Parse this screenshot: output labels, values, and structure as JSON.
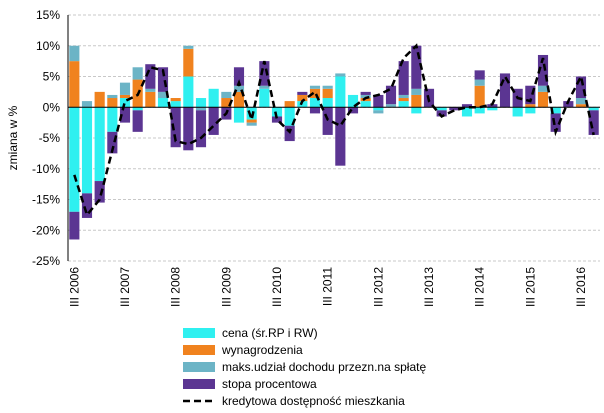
{
  "chart_data": {
    "type": "bar",
    "stacked": true,
    "y_label": "zmiana w %",
    "categories": [
      "III 2006",
      null,
      null,
      null,
      "III 2007",
      null,
      null,
      null,
      "III 2008",
      null,
      null,
      null,
      "III 2009",
      null,
      null,
      null,
      "III 2010",
      null,
      null,
      null,
      "III 2011",
      null,
      null,
      null,
      "III 2012",
      null,
      null,
      null,
      "III 2013",
      null,
      null,
      null,
      "III 2014",
      null,
      null,
      null,
      "III 2015",
      null,
      null,
      null,
      "III 2016",
      null
    ],
    "series": [
      {
        "name": "cena (śr.RP i RW)",
        "type": "bar",
        "color": "#2ff0f0",
        "values": [
          -17,
          -14,
          -12,
          -4,
          1.5,
          -0.5,
          0,
          1.5,
          1,
          5,
          1.5,
          3,
          0,
          -2.5,
          -2,
          3,
          -1.5,
          -3,
          1,
          1.5,
          1.5,
          5,
          2,
          1,
          -0.5,
          0,
          1,
          -1,
          0,
          -0.5,
          0,
          -1.5,
          -1,
          -0.5,
          0,
          -1.5,
          -1,
          0,
          -1,
          0,
          0,
          -0.5
        ]
      },
      {
        "name": "wynagrodzenia",
        "type": "bar",
        "color": "#f0821e",
        "values": [
          7.5,
          0,
          2.5,
          1.5,
          0.5,
          4.5,
          2.5,
          0,
          0.5,
          4.5,
          0,
          0,
          1.5,
          2.5,
          -0.5,
          0,
          0,
          1,
          1,
          1.5,
          1.5,
          0,
          0,
          0.5,
          0,
          0,
          0.5,
          2,
          0,
          0,
          0,
          0,
          3.5,
          0,
          0,
          0,
          0.5,
          2.5,
          0,
          0,
          0.5,
          0
        ]
      },
      {
        "name": "maks.udział dochodu przezn.na spłatę",
        "type": "bar",
        "color": "#6cb4c6",
        "values": [
          2.5,
          1,
          0,
          0.5,
          2,
          2,
          0.5,
          1,
          0,
          0.5,
          -0.5,
          0,
          1,
          1,
          -0.5,
          0.5,
          0,
          0,
          0,
          0.5,
          0.5,
          0.5,
          0,
          0.5,
          -0.5,
          0.5,
          0.5,
          1,
          0,
          0,
          0,
          0,
          1,
          0,
          0,
          0,
          0,
          1,
          0,
          0,
          1,
          0
        ]
      },
      {
        "name": "stopa procentowa",
        "type": "bar",
        "color": "#5b3592",
        "values": [
          -4.5,
          -4,
          -3.5,
          -3.5,
          -2.5,
          -3.5,
          4,
          4,
          -6.5,
          -7,
          -6,
          -4.5,
          -2,
          3,
          0,
          4,
          -1,
          -2.5,
          0.5,
          -1,
          -4.5,
          -9.5,
          -1,
          0.5,
          2,
          3,
          5.5,
          7,
          3,
          -1,
          -0.5,
          0.5,
          1.5,
          0.5,
          5.5,
          3,
          3,
          5,
          -3,
          1,
          3.5,
          -4
        ]
      },
      {
        "name": "kredytowa dostępność mieszkania",
        "type": "line",
        "color": "#000000",
        "values": [
          -11,
          -17.5,
          -15,
          -7,
          1,
          2,
          6.5,
          6,
          -5.5,
          -6,
          -5,
          -3,
          -1,
          4,
          -2,
          7.5,
          -2,
          -4,
          1,
          2.5,
          -2,
          -3,
          0,
          1.5,
          2,
          3,
          8,
          10,
          1,
          -1.5,
          -0.5,
          0,
          0,
          0.5,
          5,
          1.5,
          1,
          8,
          -4,
          1,
          5,
          -4.5
        ]
      }
    ],
    "ylim": [
      -25,
      15
    ],
    "yticks": [
      {
        "value": -25,
        "label": "-25%"
      },
      {
        "value": -20,
        "label": "-20%"
      },
      {
        "value": -15,
        "label": "-15%"
      },
      {
        "value": -10,
        "label": "-10%"
      },
      {
        "value": -5,
        "label": "-5%"
      },
      {
        "value": 0,
        "label": "0%"
      },
      {
        "value": 5,
        "label": "5%"
      },
      {
        "value": 10,
        "label": "10%"
      },
      {
        "value": 15,
        "label": "15%"
      }
    ],
    "grid": true
  }
}
